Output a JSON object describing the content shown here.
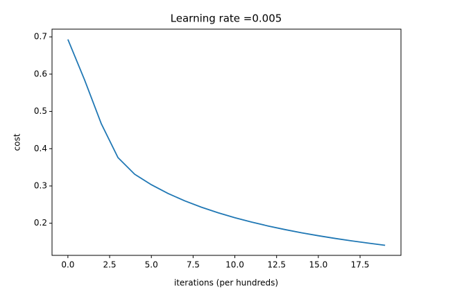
{
  "chart_data": {
    "type": "line",
    "title": "Learning rate =0.005",
    "xlabel": "iterations (per hundreds)",
    "ylabel": "cost",
    "x": [
      0,
      1,
      2,
      3,
      4,
      5,
      6,
      7,
      8,
      9,
      10,
      11,
      12,
      13,
      14,
      15,
      16,
      17,
      18,
      19
    ],
    "series": [
      {
        "name": "cost",
        "color": "#1f77b4",
        "values": [
          0.693147,
          0.584508,
          0.466949,
          0.376007,
          0.331463,
          0.303273,
          0.27988,
          0.260042,
          0.242941,
          0.228004,
          0.21482,
          0.203078,
          0.192544,
          0.183033,
          0.174399,
          0.166521,
          0.159305,
          0.152667,
          0.146542,
          0.140872
        ]
      }
    ],
    "xlim": [
      -0.95,
      19.95
    ],
    "ylim": [
      0.1138,
      0.7207
    ],
    "xticks": [
      {
        "value": 0,
        "label": "0.0"
      },
      {
        "value": 2.5,
        "label": "2.5"
      },
      {
        "value": 5,
        "label": "5.0"
      },
      {
        "value": 7.5,
        "label": "7.5"
      },
      {
        "value": 10,
        "label": "10.0"
      },
      {
        "value": 12.5,
        "label": "12.5"
      },
      {
        "value": 15,
        "label": "15.0"
      },
      {
        "value": 17.5,
        "label": "17.5"
      }
    ],
    "yticks": [
      0.2,
      0.3,
      0.4,
      0.5,
      0.6,
      0.7
    ]
  }
}
